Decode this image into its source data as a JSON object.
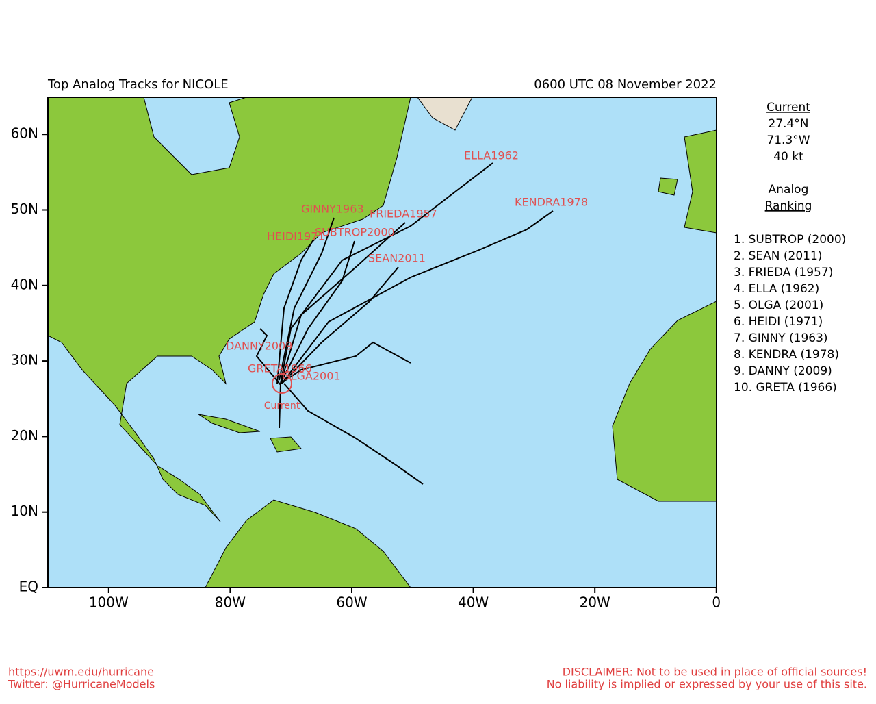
{
  "header": {
    "title": "Top Analog Tracks for NICOLE",
    "time": "0600 UTC 08 November 2022"
  },
  "map": {
    "lat_labels": [
      "EQ",
      "10N",
      "20N",
      "30N",
      "40N",
      "50N",
      "60N"
    ],
    "lon_labels": [
      "100W",
      "80W",
      "60W",
      "40W",
      "20W",
      "0"
    ],
    "track_labels": [
      "ELLA1962",
      "KENDRA1978",
      "GINNY1963",
      "FRIEDA1957",
      "HEIDI1971",
      "SUBTROP2000",
      "SEAN2011",
      "DANNY2009",
      "GRETA1966",
      "OLGA2001"
    ],
    "current_label": "Current"
  },
  "panel": {
    "current_heading": "Current",
    "lat": "27.4°N",
    "lon": "71.3°W",
    "wind": "40 kt",
    "analog_heading": [
      "Analog",
      "Ranking"
    ],
    "ranking": [
      "1.  SUBTROP (2000)",
      "2.  SEAN (2011)",
      "3.  FRIEDA (1957)",
      "4.  ELLA (1962)",
      "5.  OLGA (2001)",
      "6.  HEIDI (1971)",
      "7.  GINNY (1963)",
      "8.  KENDRA (1978)",
      "9.  DANNY (2009)",
      "10. GRETA (1966)"
    ]
  },
  "footer": {
    "left": [
      "https://uwm.edu/hurricane",
      "Twitter: @HurricaneModels"
    ],
    "right": [
      "DISCLAIMER: Not to be used in place of official sources!",
      "No liability is implied or expressed by your use of this site."
    ]
  }
}
